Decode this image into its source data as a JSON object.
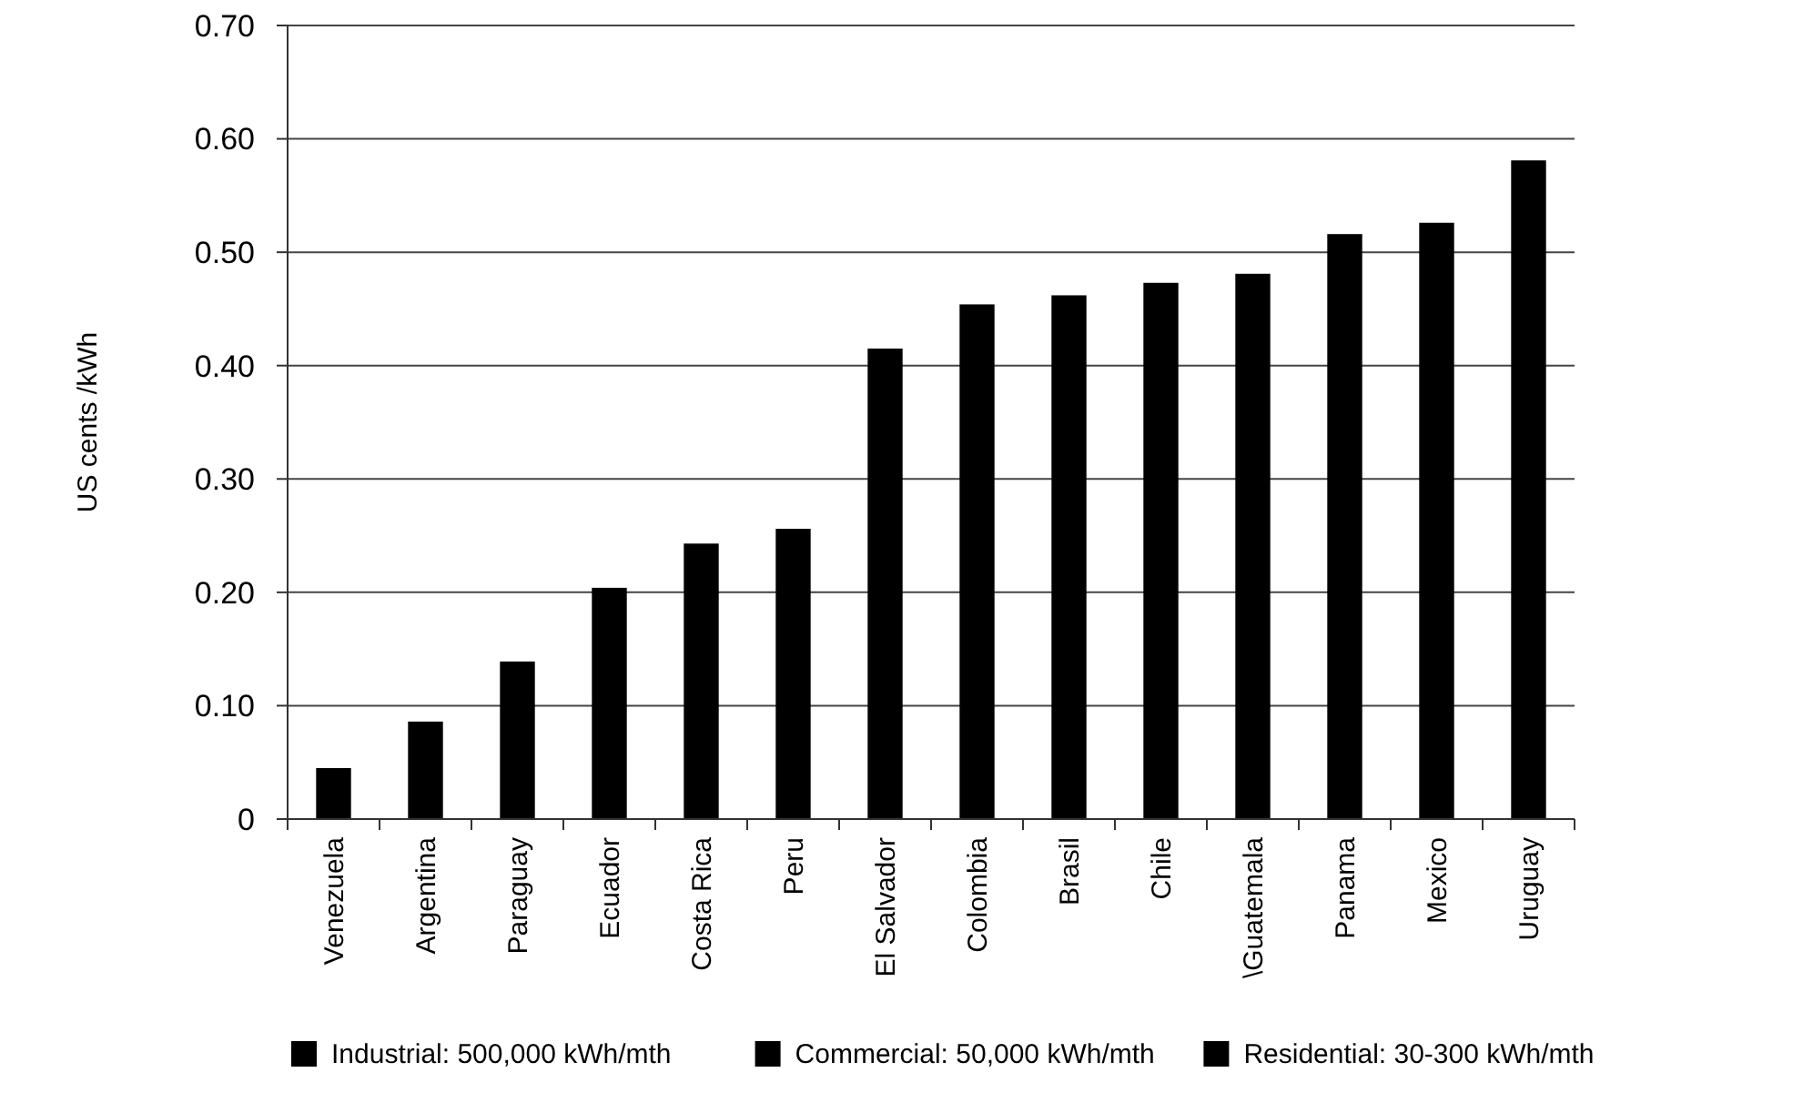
{
  "chart_data": {
    "type": "bar",
    "ylabel": "US cents /kWh",
    "categories": [
      "Venezuela",
      "Argentina",
      "Paraguay",
      "Ecuador",
      "Costa Rica",
      "Peru",
      "El Salvador",
      "Colombia",
      "Brasil",
      "Chile",
      "\\Guatemala",
      "Panama",
      "Mexico",
      "Uruguay"
    ],
    "series": [
      {
        "name": "Industrial: 500,000 kWh/mth",
        "color": "#000000",
        "values": [
          0.045,
          0.086,
          0.139,
          0.204,
          0.243,
          0.256,
          0.415,
          0.454,
          0.462,
          0.473,
          0.481,
          0.516,
          0.526,
          0.581
        ]
      },
      {
        "name": "Commercial: 50,000 kWh/mth",
        "color": "#000000",
        "values": [
          null,
          null,
          null,
          null,
          null,
          null,
          null,
          null,
          null,
          null,
          null,
          null,
          null,
          null
        ]
      },
      {
        "name": "Residential: 30-300 kWh/mth",
        "color": "#000000",
        "values": [
          null,
          null,
          null,
          null,
          null,
          null,
          null,
          null,
          null,
          null,
          null,
          null,
          null,
          null
        ]
      }
    ],
    "stacked": true,
    "ylim": [
      0,
      0.7
    ],
    "yticks": [
      {
        "value": 0,
        "label": "0"
      },
      {
        "value": 0.1,
        "label": "0.10"
      },
      {
        "value": 0.2,
        "label": "0.20"
      },
      {
        "value": 0.3,
        "label": "0.30"
      },
      {
        "value": 0.4,
        "label": "0.40"
      },
      {
        "value": 0.5,
        "label": "0.50"
      },
      {
        "value": 0.6,
        "label": "0.60"
      },
      {
        "value": 0.7,
        "label": "0.70"
      }
    ],
    "grid": "y",
    "legend": "bottom"
  }
}
